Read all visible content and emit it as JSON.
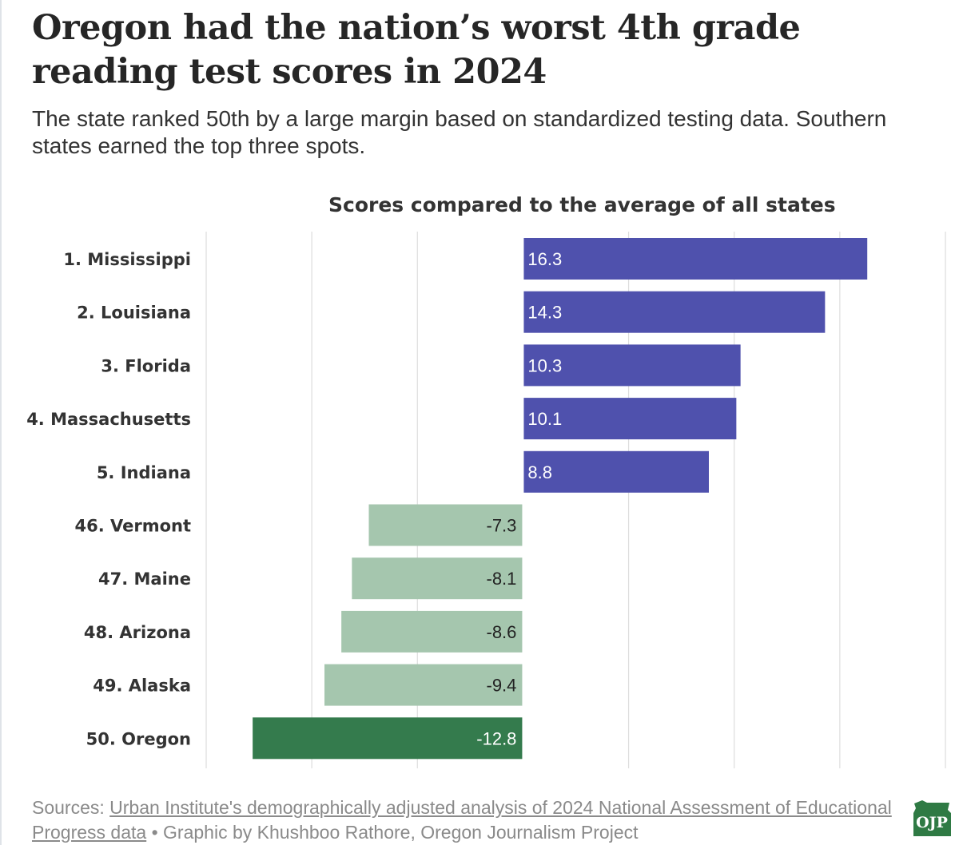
{
  "header": {
    "title": "Oregon had the nation’s worst 4th grade reading test scores in 2024",
    "subtitle": "The state ranked 50th by a large margin based on standardized testing data. Southern states earned the top three spots."
  },
  "chart_data": {
    "type": "bar",
    "orientation": "horizontal",
    "title": "Scores compared to the average of all states",
    "categories": [
      "1. Mississippi",
      "2. Louisiana",
      "3. Florida",
      "4. Massachusetts",
      "5. Indiana",
      "46. Vermont",
      "47. Maine",
      "48. Arizona",
      "49. Alaska",
      "50. Oregon"
    ],
    "values": [
      16.3,
      14.3,
      10.3,
      10.1,
      8.8,
      -7.3,
      -8.1,
      -8.6,
      -9.4,
      -12.8
    ],
    "value_labels": [
      "16.3",
      "14.3",
      "10.3",
      "10.1",
      "8.8",
      "-7.3",
      "-8.1",
      "-8.6",
      "-9.4",
      "-12.8"
    ],
    "xlim": [
      -15,
      20
    ],
    "grid": true,
    "colors": {
      "positive": "#4f51ad",
      "negative": "#a5c6ae",
      "highlight": "#347b4d",
      "gridline": "#dddddd"
    },
    "highlight_category": "50. Oregon"
  },
  "footer": {
    "sources_prefix": "Sources:",
    "sources_link": "Urban Institute's demographically adjusted analysis of 2024 National Assessment of Educational Progress data",
    "credit": "• Graphic by Khushboo Rathore, Oregon Journalism Project",
    "logo_text": "OJP",
    "logo_icon": "oregon-state-shape-icon"
  }
}
